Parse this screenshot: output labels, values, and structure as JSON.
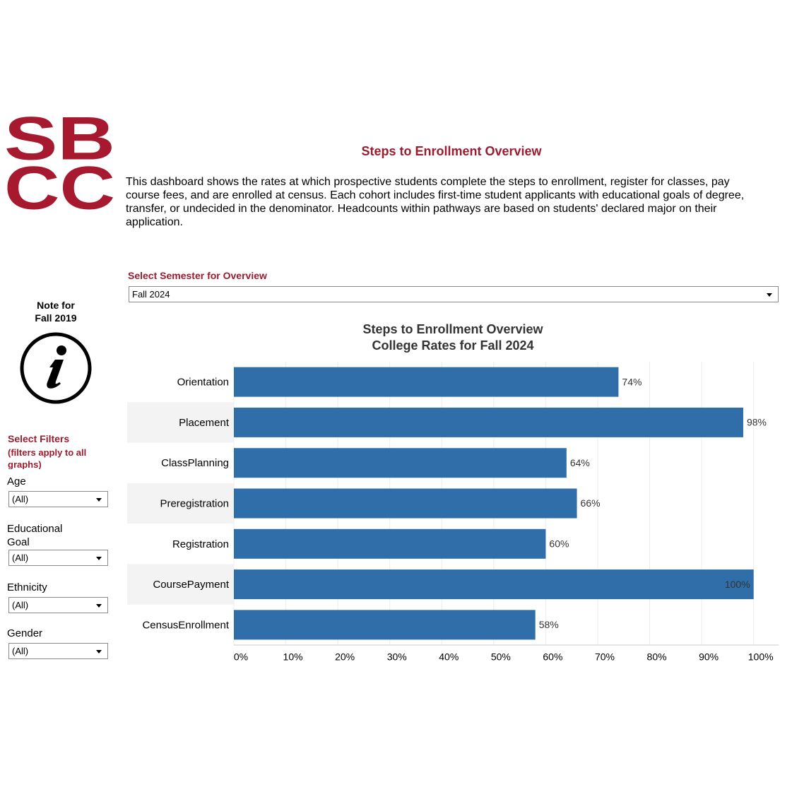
{
  "logo": [
    "SB",
    "CC"
  ],
  "header": {
    "title": "Steps to Enrollment Overview",
    "description": "This dashboard shows the rates at which prospective students complete the steps to enrollment, register for classes, pay course fees, and are enrolled at census. Each cohort includes first-time student applicants with educational goals of degree, transfer, or undecided in the denominator. Headcounts within pathways are based on students' declared major on their application."
  },
  "semester": {
    "label": "Select Semester for Overview",
    "selected": "Fall 2024"
  },
  "note": [
    "Note for",
    "Fall 2019"
  ],
  "filters": {
    "title": "Select Filters",
    "subtitle": "(filters apply to all graphs)",
    "items": [
      {
        "label": "Age",
        "selected": "(All)"
      },
      {
        "label": "Educational Goal",
        "selected": "(All)"
      },
      {
        "label": "Ethnicity",
        "selected": "(All)"
      },
      {
        "label": "Gender",
        "selected": "(All)"
      }
    ]
  },
  "chart_data": {
    "type": "bar",
    "orientation": "horizontal",
    "title": [
      "Steps to Enrollment Overview",
      "College Rates for Fall 2024"
    ],
    "categories": [
      "Orientation",
      "Placement",
      "ClassPlanning",
      "Preregistration",
      "Registration",
      "CoursePayment",
      "CensusEnrollment"
    ],
    "values": [
      74,
      98,
      64,
      66,
      60,
      100,
      58
    ],
    "value_labels": [
      "74%",
      "98%",
      "64%",
      "66%",
      "60%",
      "100%",
      "58%"
    ],
    "color": "#2f6ea9",
    "xlim": [
      0,
      104.8
    ],
    "xticks": [
      {
        "value": 0,
        "label": "0%"
      },
      {
        "value": 10,
        "label": "10%"
      },
      {
        "value": 20,
        "label": "20%"
      },
      {
        "value": 30,
        "label": "30%"
      },
      {
        "value": 40,
        "label": "40%"
      },
      {
        "value": 50,
        "label": "50%"
      },
      {
        "value": 60,
        "label": "60%"
      },
      {
        "value": 70,
        "label": "70%"
      },
      {
        "value": 80,
        "label": "80%"
      },
      {
        "value": 90,
        "label": "90%"
      },
      {
        "value": 100,
        "label": "100%"
      }
    ],
    "grid": true
  }
}
